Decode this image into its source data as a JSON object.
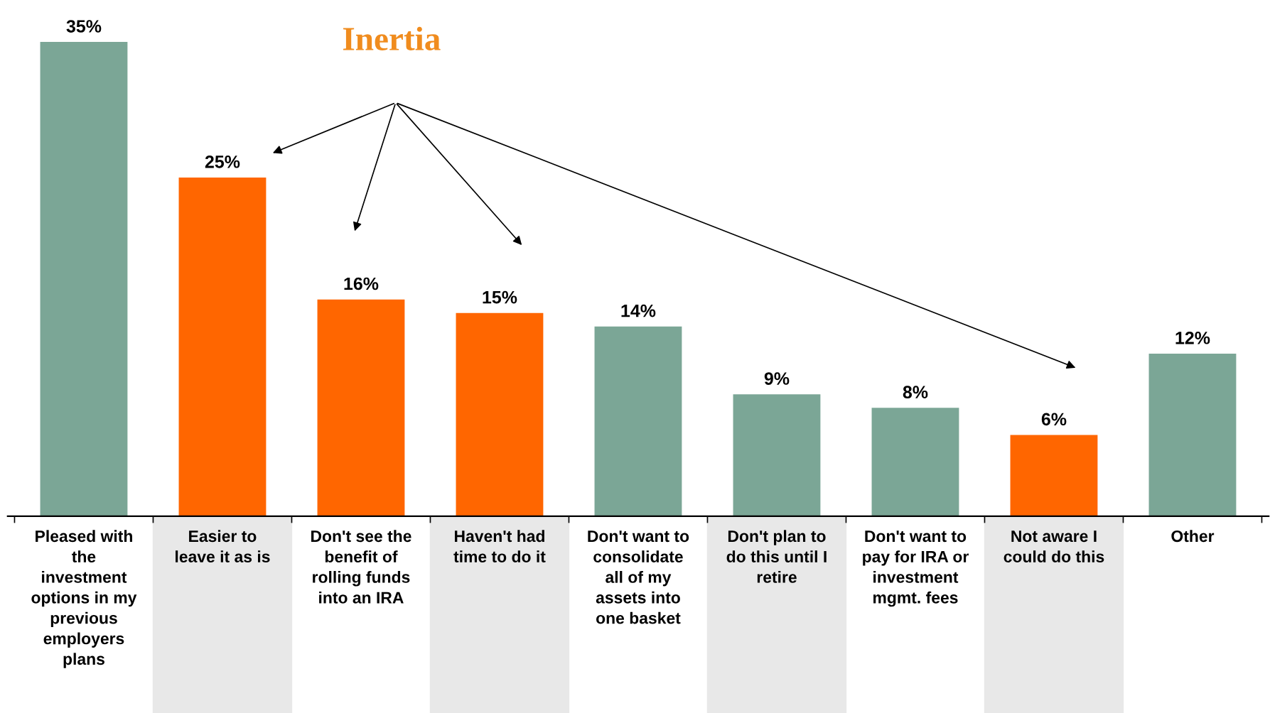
{
  "chart_data": {
    "type": "bar",
    "categories": [
      "Pleased with\nthe\ninvestment\noptions in my\nprevious\nemployers\nplans",
      "Easier to\nleave it as is",
      "Don't see the\nbenefit of\nrolling funds\ninto an IRA",
      "Haven't had\ntime to do it",
      "Don't want to\nconsolidate\nall of my\nassets into\none basket",
      "Don't plan to\ndo this until I\nretire",
      "Don't want to\npay for IRA or\ninvestment\nmgmt. fees",
      "Not aware I\ncould do this",
      "Other"
    ],
    "values": [
      35,
      25,
      16,
      15,
      14,
      9,
      8,
      6,
      12
    ],
    "colors": [
      "#7ba696",
      "#ff6600",
      "#ff6600",
      "#ff6600",
      "#7ba696",
      "#7ba696",
      "#7ba696",
      "#ff6600",
      "#7ba696"
    ],
    "value_labels": [
      "35%",
      "25%",
      "16%",
      "15%",
      "14%",
      "9%",
      "8%",
      "6%",
      "12%"
    ],
    "annotations": [
      "Inertia"
    ],
    "grid": false,
    "legend": false
  }
}
